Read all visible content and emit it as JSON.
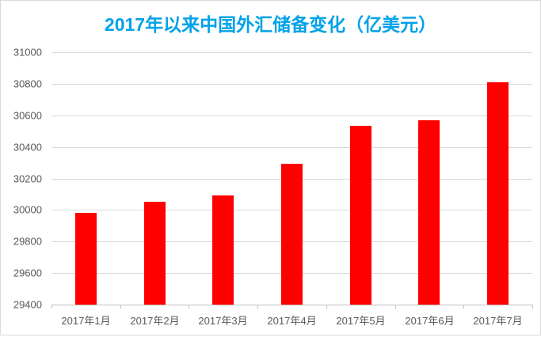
{
  "chart_data": {
    "type": "bar",
    "title": "2017年以来中国外汇储备变化（亿美元）",
    "categories": [
      "2017年1月",
      "2017年2月",
      "2017年3月",
      "2017年4月",
      "2017年5月",
      "2017年6月",
      "2017年7月"
    ],
    "values": [
      29982,
      30051,
      30091,
      30295,
      30536,
      30568,
      30807
    ],
    "xlabel": "",
    "ylabel": "",
    "ylim": [
      29400,
      31000
    ],
    "ytick_step": 200,
    "ytick_labels": [
      "29400",
      "29600",
      "29800",
      "30000",
      "30200",
      "30400",
      "30600",
      "30800",
      "31000"
    ],
    "grid": true,
    "legend": "none",
    "colors": {
      "bar": "#ff0000",
      "title": "#00a2e8",
      "axis_label": "#595959",
      "gridline": "#d9d9d9",
      "axis_line": "#bfbfbf",
      "frame_border": "#d9d9d9",
      "background": "#ffffff"
    }
  }
}
